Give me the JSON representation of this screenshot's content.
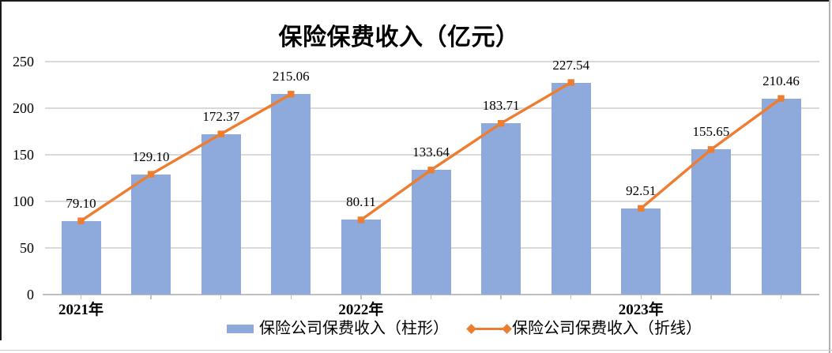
{
  "chart_data": {
    "type": "bar",
    "combo": "bar+line",
    "title": "保险保费收入（亿元）",
    "categories": [
      "2021年",
      "",
      "",
      "",
      "2022年",
      "",
      "",
      "",
      "2023年",
      "",
      ""
    ],
    "series": [
      {
        "name": "保险公司保费收入（柱形）",
        "type": "bar",
        "color": "#8eaadc",
        "values": [
          79.1,
          129.1,
          172.37,
          215.06,
          80.11,
          133.64,
          183.71,
          227.54,
          92.51,
          155.65,
          210.46
        ]
      },
      {
        "name": "保险公司保费收入（折线）",
        "type": "line",
        "color": "#ed7d31",
        "marker": "square",
        "values": [
          79.1,
          129.1,
          172.37,
          215.06,
          80.11,
          133.64,
          183.71,
          227.54,
          92.51,
          155.65,
          210.46
        ],
        "segments": [
          [
            0,
            3
          ],
          [
            4,
            7
          ],
          [
            8,
            10
          ]
        ]
      }
    ],
    "data_labels": [
      "79.10",
      "129.10",
      "172.37",
      "215.06",
      "80.11",
      "133.64",
      "183.71",
      "227.54",
      "92.51",
      "155.65",
      "210.46"
    ],
    "ylim": [
      0,
      250
    ],
    "yticks": [
      "0",
      "50",
      "100",
      "150",
      "200",
      "250"
    ],
    "grid": true,
    "legend_position": "bottom",
    "colors": {
      "bar_fill": "#8eaadc",
      "line": "#ed7d31",
      "gridline": "#d9d9d9",
      "axis_line": "#bfbfbf",
      "text": "#000000"
    }
  }
}
